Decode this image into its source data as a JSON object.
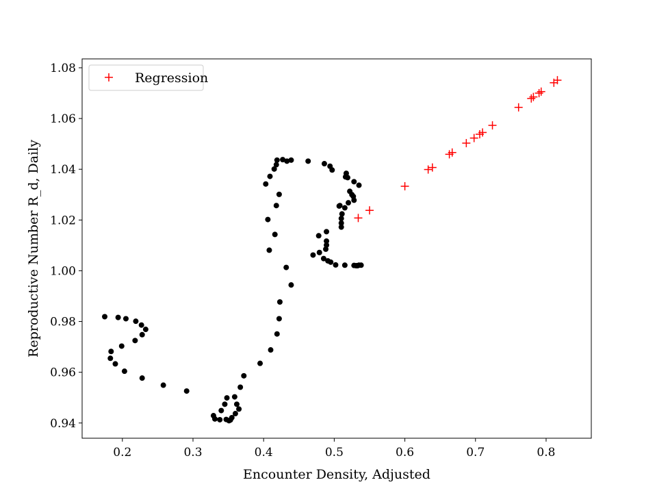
{
  "chart_data": {
    "type": "scatter",
    "title": "",
    "xlabel": "Encounter Density, Adjusted",
    "ylabel": "Reproductive Number R_d, Daily",
    "xlim": [
      0.143,
      0.864
    ],
    "ylim": [
      0.934,
      1.0835
    ],
    "x_ticks": [
      0.2,
      0.3,
      0.4,
      0.5,
      0.6,
      0.7,
      0.8
    ],
    "x_tick_labels": [
      "0.2",
      "0.3",
      "0.4",
      "0.5",
      "0.6",
      "0.7",
      "0.8"
    ],
    "y_ticks": [
      0.94,
      0.96,
      0.98,
      1.0,
      1.02,
      1.04,
      1.06,
      1.08
    ],
    "y_tick_labels": [
      "0.94",
      "0.96",
      "0.98",
      "1.00",
      "1.02",
      "1.04",
      "1.06",
      "1.08"
    ],
    "grid": false,
    "legend_position": "upper-left",
    "legend": [
      "Regression"
    ],
    "series": [
      {
        "marker": "dot",
        "color": "#000000",
        "x": [
          0.175,
          0.194,
          0.205,
          0.219,
          0.227,
          0.233,
          0.228,
          0.218,
          0.199,
          0.184,
          0.183,
          0.19,
          0.203,
          0.228,
          0.258,
          0.291,
          0.329,
          0.331,
          0.338,
          0.347,
          0.351,
          0.353,
          0.355,
          0.36,
          0.365,
          0.362,
          0.359,
          0.348,
          0.345,
          0.34,
          0.367,
          0.372,
          0.395,
          0.41,
          0.419,
          0.422,
          0.423,
          0.439,
          0.432,
          0.416,
          0.408,
          0.406,
          0.418,
          0.422,
          0.403,
          0.409,
          0.415,
          0.418,
          0.419,
          0.427,
          0.433,
          0.439,
          0.463,
          0.486,
          0.494,
          0.497,
          0.478,
          0.488,
          0.489,
          0.489,
          0.489,
          0.479,
          0.47,
          0.485,
          0.491,
          0.495,
          0.502,
          0.515,
          0.528,
          0.531,
          0.533,
          0.535,
          0.538,
          0.51,
          0.51,
          0.51,
          0.511,
          0.508,
          0.515,
          0.52,
          0.507,
          0.528,
          0.527,
          0.525,
          0.522,
          0.528,
          0.535,
          0.519,
          0.517,
          0.516
        ],
        "y": [
          0.9819,
          0.9816,
          0.9811,
          0.9801,
          0.9786,
          0.9769,
          0.9748,
          0.9725,
          0.9703,
          0.9682,
          0.9655,
          0.9633,
          0.9604,
          0.9577,
          0.9549,
          0.9526,
          0.9429,
          0.9416,
          0.9413,
          0.9414,
          0.9409,
          0.9412,
          0.9421,
          0.9437,
          0.9455,
          0.9474,
          0.9503,
          0.9499,
          0.9474,
          0.9449,
          0.9541,
          0.9586,
          0.9635,
          0.9688,
          0.9751,
          0.9811,
          0.9877,
          0.9944,
          1.0013,
          1.0143,
          1.0081,
          1.0202,
          1.0257,
          1.0301,
          1.0342,
          1.0372,
          1.0401,
          1.0418,
          1.0436,
          1.0438,
          1.0432,
          1.0436,
          1.0432,
          1.0422,
          1.0412,
          1.0397,
          1.0138,
          1.0085,
          1.0101,
          1.0117,
          1.0154,
          1.0072,
          1.0062,
          1.0048,
          1.0039,
          1.0034,
          1.0023,
          1.0022,
          1.0021,
          1.002,
          1.002,
          1.0022,
          1.0022,
          1.0172,
          1.0188,
          1.0206,
          1.0224,
          1.0257,
          1.0248,
          1.0268,
          1.0255,
          1.0278,
          1.0293,
          1.03,
          1.0313,
          1.0351,
          1.0337,
          1.0367,
          1.0384,
          1.037
        ]
      },
      {
        "name": "Regression",
        "marker": "plus",
        "color": "#ff0000",
        "x": [
          0.534,
          0.55,
          0.6,
          0.633,
          0.639,
          0.663,
          0.667,
          0.687,
          0.698,
          0.706,
          0.71,
          0.724,
          0.761,
          0.779,
          0.782,
          0.79,
          0.793,
          0.811,
          0.816
        ],
        "y": [
          1.0208,
          1.0238,
          1.0333,
          1.0399,
          1.0407,
          1.0459,
          1.0466,
          1.0503,
          1.0523,
          1.0538,
          1.0545,
          1.0573,
          1.0644,
          1.0679,
          1.0685,
          1.07,
          1.0706,
          1.0741,
          1.0751
        ]
      }
    ]
  }
}
